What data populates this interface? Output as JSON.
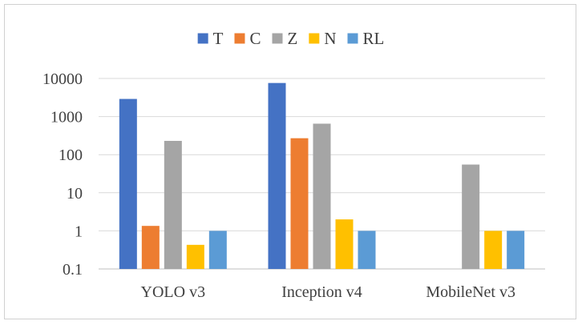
{
  "chart_data": {
    "type": "bar",
    "title": "",
    "xlabel": "",
    "ylabel": "",
    "yscale": "log",
    "ylim": [
      0.1,
      10000
    ],
    "yticks": [
      "0.1",
      "1",
      "10",
      "100",
      "1000",
      "10000"
    ],
    "grid": true,
    "legend_position": "top-center",
    "categories": [
      "YOLO v3",
      "Inception v4",
      "MobileNet v3"
    ],
    "series": [
      {
        "name": "T",
        "color": "#4472c4",
        "values": [
          2900,
          7600,
          null
        ]
      },
      {
        "name": "C",
        "color": "#ed7d31",
        "values": [
          1.35,
          270,
          null
        ]
      },
      {
        "name": "Z",
        "color": "#a5a5a5",
        "values": [
          230,
          650,
          55
        ]
      },
      {
        "name": "N",
        "color": "#ffc000",
        "values": [
          0.43,
          2.0,
          1.0
        ]
      },
      {
        "name": "RL",
        "color": "#5b9bd5",
        "values": [
          1.0,
          1.0,
          1.0
        ]
      }
    ]
  }
}
